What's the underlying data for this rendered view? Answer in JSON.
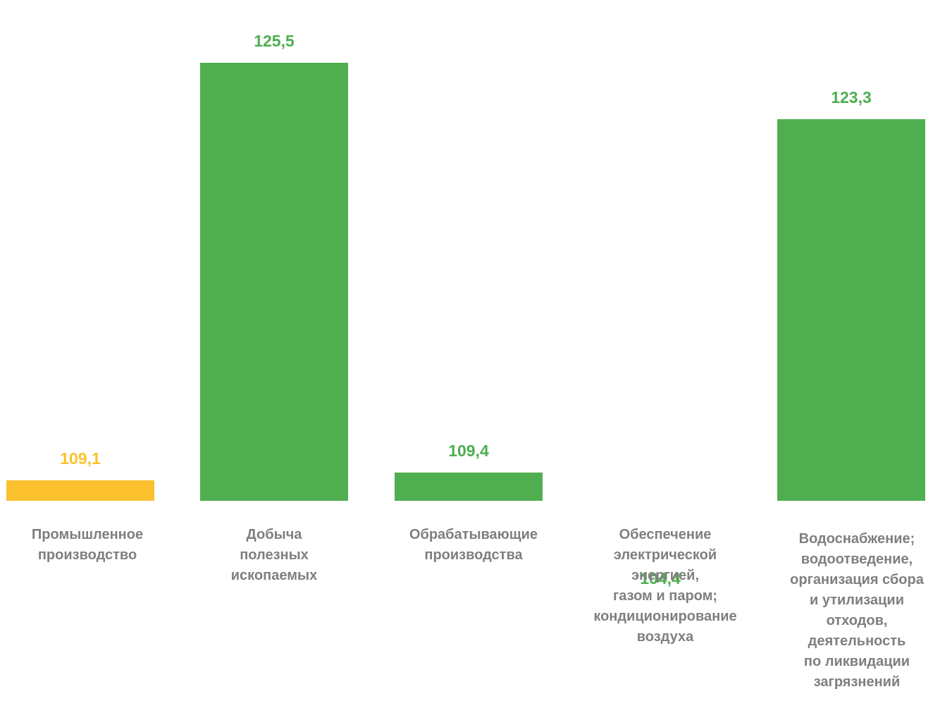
{
  "chart_data": {
    "type": "bar",
    "categories": [
      "Промышленное\nпроизводство",
      "Добыча\nполезных\nископаемых",
      "Обрабатывающие\nпроизводства",
      "Обеспечение\nэлектрической\nэнергией,\nгазом и паром;\nкондиционирование\nвоздуха",
      "Водоснабжение;\nводоотведение,\nорганизация  сбора\nи утилизации\nотходов,\nдеятельность\nпо ликвидации\nзагрязнений"
    ],
    "values": [
      109.1,
      125.5,
      109.4,
      104.4,
      123.3
    ],
    "value_labels": [
      "109,1",
      "125,5",
      "109,4",
      "104,4",
      "123,3"
    ],
    "bar_colors": [
      "#fbc02d",
      "#4fae50",
      "#4fae50",
      "#4fae50",
      "#4fae50"
    ],
    "label_colors": [
      "#fbc02d",
      "#4fae50",
      "#4fae50",
      "#4fae50",
      "#4fae50"
    ],
    "category_label_color": "#7f7f7f",
    "title": "",
    "xlabel": "",
    "ylabel": "",
    "grid": false,
    "legend": "none"
  }
}
